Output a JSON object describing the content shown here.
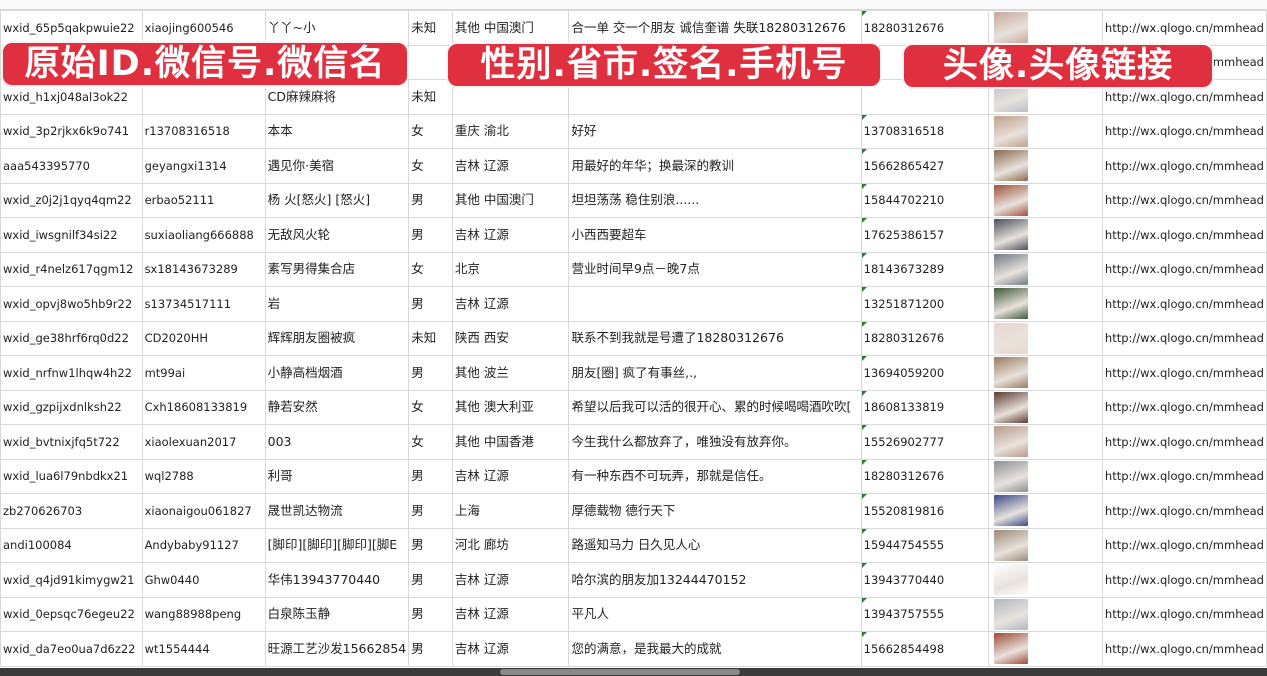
{
  "overlay_labels": [
    "原始ID.微信号.微信名",
    "性别.省市.签名.手机号",
    "头像.头像链接"
  ],
  "rows": [
    {
      "id": "wxid_65p5qakpwuie22",
      "wechat": "xiaojing600546",
      "name": "丫丫~小",
      "gender": "未知",
      "region": "其他 中国澳门",
      "signature": "合一单 交一个朋友 诚信奎谱 失联18280312676",
      "phone": "18280312676",
      "avatar_color": "#c9a79a",
      "url": "http://wx.qlogo.cn/mmhead"
    },
    {
      "id": "",
      "wechat": "",
      "name": "",
      "gender": "",
      "region": "",
      "signature": "",
      "phone": "",
      "avatar_color": "#7c7fa8",
      "url": "http://wx.qlogo.cn/mmhead"
    },
    {
      "id": "wxid_h1xj048al3ok22",
      "wechat": "",
      "name": "CD麻辣麻将",
      "gender": "未知",
      "region": "",
      "signature": "",
      "phone": "",
      "avatar_color": "#b8c0c8",
      "url": "http://wx.qlogo.cn/mmhead"
    },
    {
      "id": "wxid_3p2rjkx6k9o741",
      "wechat": "r13708316518",
      "name": "本本",
      "gender": "女",
      "region": "重庆 渝北",
      "signature": "好好",
      "phone": "13708316518",
      "avatar_color": "#bfa08a",
      "url": "http://wx.qlogo.cn/mmhead"
    },
    {
      "id": "aaa543395770",
      "wechat": "geyangxi1314",
      "name": "遇见你·美宿",
      "gender": "女",
      "region": "吉林 辽源",
      "signature": "用最好的年华；换最深的教训",
      "phone": "15662865427",
      "avatar_color": "#8a6b4f",
      "url": "http://wx.qlogo.cn/mmhead"
    },
    {
      "id": "wxid_z0j2j1qyq4qm22",
      "wechat": "erbao52111",
      "name": "杨 火[怒火] [怒火]",
      "gender": "男",
      "region": "其他 中国澳门",
      "signature": "坦坦荡荡 稳住别浪......",
      "phone": "15844702210",
      "avatar_color": "#a0503c",
      "url": "http://wx.qlogo.cn/mmhead"
    },
    {
      "id": "wxid_iwsgnilf34si22",
      "wechat": "suxiaoliang666888",
      "name": "无敌风火轮",
      "gender": "男",
      "region": "吉林 辽源",
      "signature": "小西西要超车",
      "phone": "17625386157",
      "avatar_color": "#4a4f5c",
      "url": "http://wx.qlogo.cn/mmhead"
    },
    {
      "id": "wxid_r4nelz617qgm12",
      "wechat": "sx18143673289",
      "name": "素写男得集合店",
      "gender": "女",
      "region": "北京",
      "signature": "营业时间早9点－晚7点",
      "phone": "18143673289",
      "avatar_color": "#6e7a86",
      "url": "http://wx.qlogo.cn/mmhead"
    },
    {
      "id": "wxid_opvj8wo5hb9r22",
      "wechat": "s13734517111",
      "name": "岩",
      "gender": "男",
      "region": "吉林 辽源",
      "signature": "",
      "phone": "13251871200",
      "avatar_color": "#3d5a3a",
      "url": "http://wx.qlogo.cn/mmhead"
    },
    {
      "id": "wxid_ge38hrf6rq0d22",
      "wechat": "CD2020HH",
      "name": "辉辉朋友圈被疯",
      "gender": "未知",
      "region": "陕西 西安",
      "signature": "联系不到我就是号遭了18280312676",
      "phone": "18280312676",
      "avatar_color": "#e8d8d0",
      "url": "http://wx.qlogo.cn/mmhead"
    },
    {
      "id": "wxid_nrfnw1lhqw4h22",
      "wechat": "mt99ai",
      "name": "小静高档烟酒",
      "gender": "男",
      "region": "其他 波兰",
      "signature": "朋友[圈] 疯了有事丝,.,",
      "phone": "13694059200",
      "avatar_color": "#9c7a60",
      "url": "http://wx.qlogo.cn/mmhead"
    },
    {
      "id": "wxid_gzpijxdnlksh22",
      "wechat": "Cxh18608133819",
      "name": "静若安然",
      "gender": "女",
      "region": "其他 澳大利亚",
      "signature": "希望以后我可以活的很开心、累的时候喝喝酒吹吹[",
      "phone": "18608133819",
      "avatar_color": "#5a3a30",
      "url": "http://wx.qlogo.cn/mmhead"
    },
    {
      "id": "wxid_bvtnixjfq5t722",
      "wechat": "xiaolexuan2017",
      "name": "003",
      "gender": "女",
      "region": "其他 中国香港",
      "signature": "今生我什么都放弃了，唯独没有放弃你。",
      "phone": "15526902777",
      "avatar_color": "#b89a8c",
      "url": "http://wx.qlogo.cn/mmhead"
    },
    {
      "id": "wxid_lua6l79nbdkx21",
      "wechat": "wql2788",
      "name": "利哥",
      "gender": "男",
      "region": "吉林 辽源",
      "signature": "有一种东西不可玩弄，那就是信任。",
      "phone": "18280312676",
      "avatar_color": "#8c8f94",
      "url": "http://wx.qlogo.cn/mmhead"
    },
    {
      "id": "zb270626703",
      "wechat": "xiaonaigou061827",
      "name": "晟世凯达物流",
      "gender": "男",
      "region": "上海",
      "signature": "厚德载物 德行天下",
      "phone": "15520819816",
      "avatar_color": "#3a4a8a",
      "url": "http://wx.qlogo.cn/mmhead"
    },
    {
      "id": "andi100084",
      "wechat": "Andybaby91127",
      "name": "[脚印][脚印][脚印][脚E",
      "gender": "男",
      "region": "河北 廊坊",
      "signature": "路遥知马力 日久见人心",
      "phone": "15944754555",
      "avatar_color": "#9a8a78",
      "url": "http://wx.qlogo.cn/mmhead"
    },
    {
      "id": "wxid_q4jd91kimygw21",
      "wechat": "Ghw0440",
      "name": "华伟13943770440",
      "gender": "男",
      "region": "吉林 辽源",
      "signature": "哈尔滨的朋友加13244470152",
      "phone": "13943770440",
      "avatar_color": "#ffffff",
      "url": "http://wx.qlogo.cn/mmhead"
    },
    {
      "id": "wxid_0epsqc76egeu22",
      "wechat": "wang88988peng",
      "name": "白泉陈玉静",
      "gender": "男",
      "region": "吉林 辽源",
      "signature": "平凡人",
      "phone": "13943757555",
      "avatar_color": "#b0b8c4",
      "url": "http://wx.qlogo.cn/mmhead"
    },
    {
      "id": "wxid_da7eo0ua7d6z22",
      "wechat": "wt1554444",
      "name": "旺源工艺沙发15662854",
      "gender": "男",
      "region": "吉林 辽源",
      "signature": "您的满意，是我最大的成就",
      "phone": "15662854498",
      "avatar_color": "#a04a3a",
      "url": "http://wx.qlogo.cn/mmhead"
    }
  ]
}
